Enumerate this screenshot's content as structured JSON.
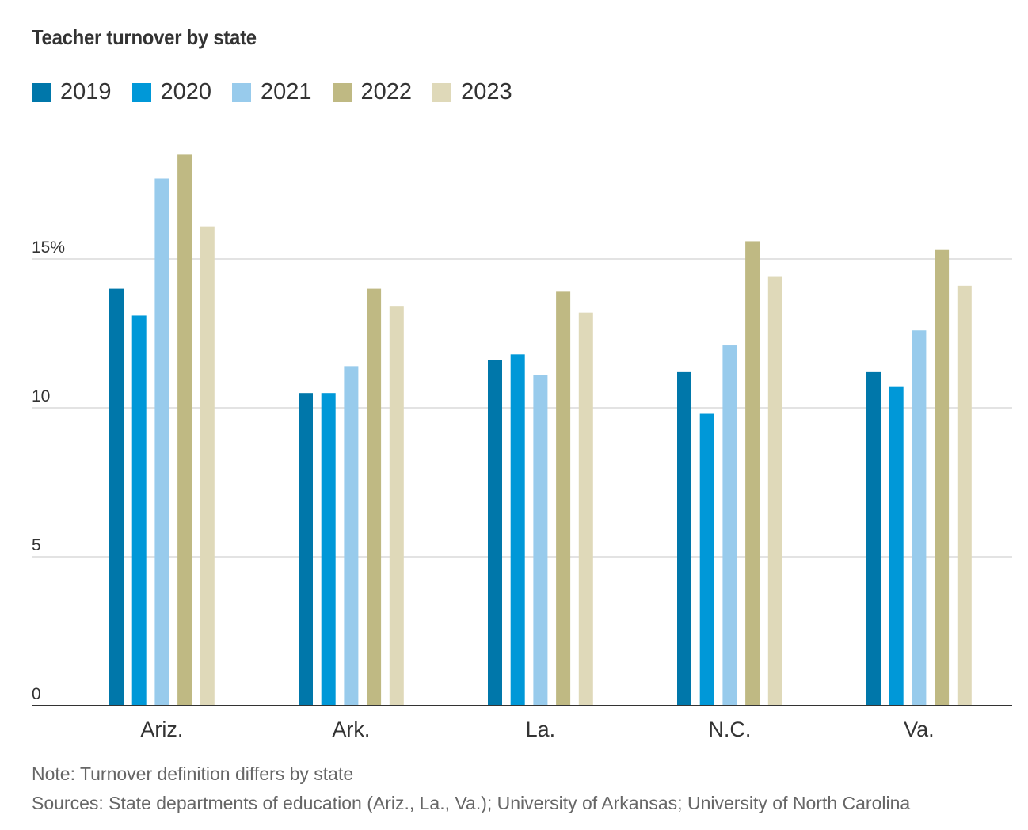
{
  "chart_data": {
    "type": "bar",
    "title": "Teacher turnover by state",
    "categories": [
      "Ariz.",
      "Ark.",
      "La.",
      "N.C.",
      "Va."
    ],
    "series": [
      {
        "name": "2019",
        "color": "#0077aa",
        "values": [
          14.0,
          10.5,
          11.6,
          11.2,
          11.2
        ]
      },
      {
        "name": "2020",
        "color": "#0098d8",
        "values": [
          13.1,
          10.5,
          11.8,
          9.8,
          10.7
        ]
      },
      {
        "name": "2021",
        "color": "#98cbec",
        "values": [
          17.7,
          11.4,
          11.1,
          12.1,
          12.6
        ]
      },
      {
        "name": "2022",
        "color": "#bfb983",
        "values": [
          18.5,
          14.0,
          13.9,
          15.6,
          15.3
        ]
      },
      {
        "name": "2023",
        "color": "#dfd9b9",
        "values": [
          16.1,
          13.4,
          13.2,
          14.4,
          14.1
        ]
      }
    ],
    "xlabel": "",
    "ylabel": "",
    "ylim": [
      0,
      20
    ],
    "yticks": [
      0,
      5,
      10,
      15
    ],
    "ytick_labels": [
      "0",
      "5",
      "10",
      "15%"
    ],
    "grid": true,
    "legend_position": "top-left"
  },
  "notes": {
    "note": "Note: Turnover definition differs by state",
    "sources": "Sources: State departments of education (Ariz., La., Va.); University of Arkansas; University of North Carolina"
  }
}
